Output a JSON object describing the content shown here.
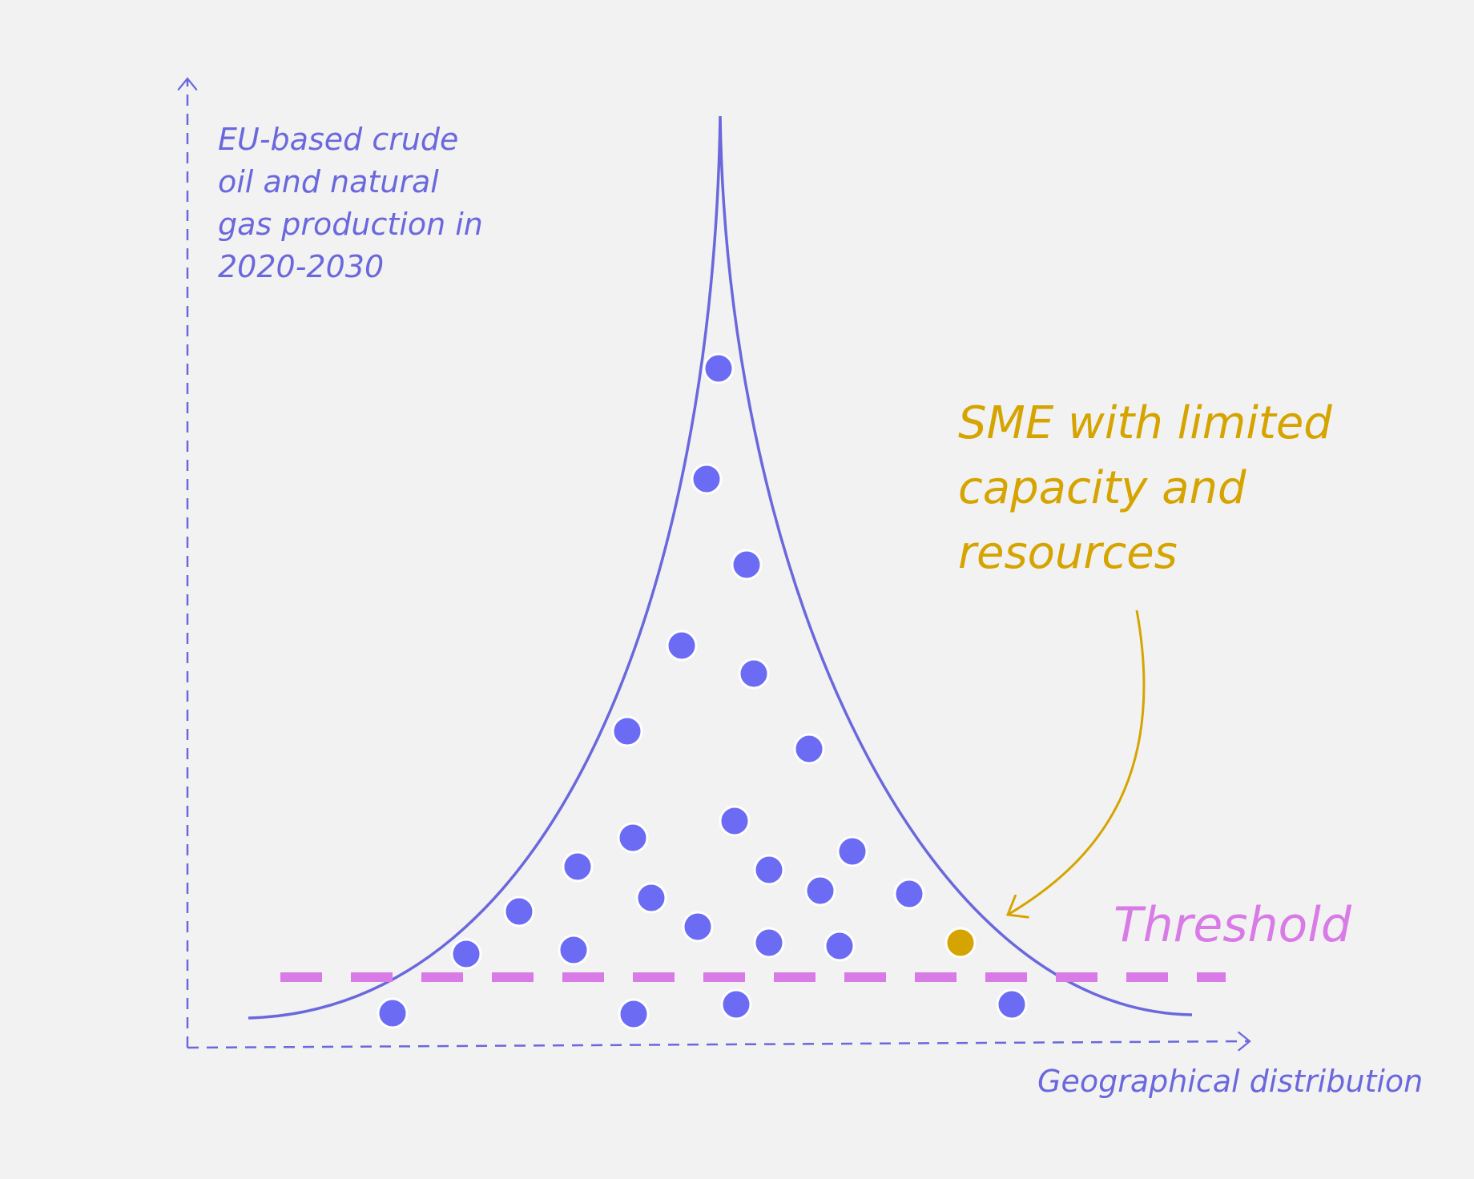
{
  "axes": {
    "y_label_lines": [
      "EU-based crude",
      "oil and natural",
      "gas production in",
      "2020-2030"
    ],
    "x_label": "Geographical distribution"
  },
  "annotation": {
    "lines": [
      "SME with limited",
      "capacity and",
      "resources"
    ]
  },
  "threshold_label": "Threshold",
  "colors": {
    "background": "#f2f2f2",
    "primary": "#6a68dc",
    "dots": "#6b6bf4",
    "highlight": "#d6a400",
    "threshold": "#d97be6"
  },
  "legend_points": {
    "total_companies": 30,
    "highlighted_company_index": 29
  }
}
